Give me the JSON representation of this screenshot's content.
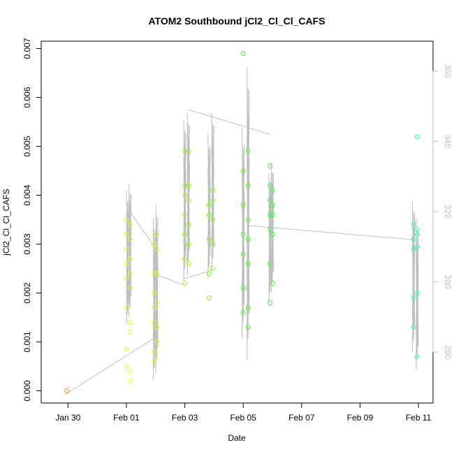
{
  "chart_data": {
    "type": "scatter",
    "title": "ATOM2 Southbound jCl2_Cl_Cl_CAFS",
    "xlabel": "Date",
    "ylabel": "jCl2_Cl_Cl_CAFS",
    "ylabel_right": "",
    "xlim": [
      "2017-01-29T02:00",
      "2017-02-11T12:00"
    ],
    "ylim": [
      -0.00025,
      0.00715
    ],
    "y2lim": [
      265.5,
      368.5
    ],
    "x_ticks": [
      {
        "label": "Jan 30",
        "x": "2017-01-30"
      },
      {
        "label": "Feb 01",
        "x": "2017-02-01"
      },
      {
        "label": "Feb 03",
        "x": "2017-02-03"
      },
      {
        "label": "Feb 05",
        "x": "2017-02-05"
      },
      {
        "label": "Feb 07",
        "x": "2017-02-07"
      },
      {
        "label": "Feb 09",
        "x": "2017-02-09"
      },
      {
        "label": "Feb 11",
        "x": "2017-02-11"
      }
    ],
    "y_ticks": [
      "0.000",
      "0.001",
      "0.002",
      "0.003",
      "0.004",
      "0.005",
      "0.006",
      "0.007"
    ],
    "y2_ticks": [
      "280",
      "300",
      "320",
      "340",
      "360"
    ],
    "grid": false,
    "legend": "none",
    "series": [
      {
        "role": "jCl2_Cl_Cl_CAFS",
        "marker": "open-circle",
        "color_scale": "colored by date, orange (earliest) to cyan (latest)",
        "points": [
          {
            "x": "2017-01-29T23:00",
            "y": 0.0,
            "color": "#ff8c1a"
          },
          {
            "x": "2017-02-01T00:00",
            "y": 0.0035,
            "color": "#e6ff1a"
          },
          {
            "x": "2017-02-01T00:00",
            "y": 0.0032,
            "color": "#e6ff1a"
          },
          {
            "x": "2017-02-01T00:00",
            "y": 0.0029,
            "color": "#e6ff1a"
          },
          {
            "x": "2017-02-01T00:00",
            "y": 0.0026,
            "color": "#e6ff1a"
          },
          {
            "x": "2017-02-01T00:00",
            "y": 0.0023,
            "color": "#e6ff1a"
          },
          {
            "x": "2017-02-01T00:00",
            "y": 0.0017,
            "color": "#e6ff1a"
          },
          {
            "x": "2017-02-01T00:00",
            "y": 0.00085,
            "color": "#e6ff1a"
          },
          {
            "x": "2017-02-01T00:00",
            "y": 0.0005,
            "color": "#e6ff1a"
          },
          {
            "x": "2017-02-01T03:00",
            "y": 0.0034,
            "color": "#e6ff1a"
          },
          {
            "x": "2017-02-01T03:00",
            "y": 0.0031,
            "color": "#e6ff1a"
          },
          {
            "x": "2017-02-01T03:00",
            "y": 0.0027,
            "color": "#e6ff1a"
          },
          {
            "x": "2017-02-01T03:00",
            "y": 0.0024,
            "color": "#e6ff1a"
          },
          {
            "x": "2017-02-01T03:00",
            "y": 0.0021,
            "color": "#e6ff1a"
          },
          {
            "x": "2017-02-01T03:00",
            "y": 0.0014,
            "color": "#e6ff1a"
          },
          {
            "x": "2017-02-01T03:00",
            "y": 0.0012,
            "color": "#e6ff1a"
          },
          {
            "x": "2017-02-01T03:00",
            "y": 0.0004,
            "color": "#e6ff1a"
          },
          {
            "x": "2017-02-01T03:00",
            "y": 0.0002,
            "color": "#e6ff1a"
          },
          {
            "x": "2017-02-01T23:00",
            "y": 0.003,
            "color": "#d9ff1a"
          },
          {
            "x": "2017-02-01T23:00",
            "y": 0.0024,
            "color": "#d9ff1a"
          },
          {
            "x": "2017-02-01T23:00",
            "y": 0.002,
            "color": "#d9ff1a"
          },
          {
            "x": "2017-02-01T23:00",
            "y": 0.0017,
            "color": "#d9ff1a"
          },
          {
            "x": "2017-02-01T23:00",
            "y": 0.0014,
            "color": "#d9ff1a"
          },
          {
            "x": "2017-02-01T23:00",
            "y": 0.0008,
            "color": "#d9ff1a"
          },
          {
            "x": "2017-02-01T23:00",
            "y": 0.0006,
            "color": "#d9ff1a"
          },
          {
            "x": "2017-02-02T01:00",
            "y": 0.0032,
            "color": "#d9ff1a"
          },
          {
            "x": "2017-02-02T01:00",
            "y": 0.0029,
            "color": "#d9ff1a"
          },
          {
            "x": "2017-02-02T01:00",
            "y": 0.0024,
            "color": "#d9ff1a"
          },
          {
            "x": "2017-02-02T01:00",
            "y": 0.0018,
            "color": "#d9ff1a"
          },
          {
            "x": "2017-02-02T01:00",
            "y": 0.0013,
            "color": "#d9ff1a"
          },
          {
            "x": "2017-02-02T01:00",
            "y": 0.001,
            "color": "#d9ff1a"
          },
          {
            "x": "2017-02-03T00:00",
            "y": 0.0049,
            "color": "#9cff1a"
          },
          {
            "x": "2017-02-03T00:00",
            "y": 0.0042,
            "color": "#9cff1a"
          },
          {
            "x": "2017-02-03T00:00",
            "y": 0.004,
            "color": "#9cff1a"
          },
          {
            "x": "2017-02-03T00:00",
            "y": 0.0036,
            "color": "#9cff1a"
          },
          {
            "x": "2017-02-03T00:00",
            "y": 0.0032,
            "color": "#9cff1a"
          },
          {
            "x": "2017-02-03T00:00",
            "y": 0.0027,
            "color": "#9cff1a"
          },
          {
            "x": "2017-02-03T00:00",
            "y": 0.0022,
            "color": "#9cff1a"
          },
          {
            "x": "2017-02-03T03:00",
            "y": 0.0049,
            "color": "#9cff1a"
          },
          {
            "x": "2017-02-03T03:00",
            "y": 0.0042,
            "color": "#9cff1a"
          },
          {
            "x": "2017-02-03T03:00",
            "y": 0.0039,
            "color": "#9cff1a"
          },
          {
            "x": "2017-02-03T03:00",
            "y": 0.0034,
            "color": "#9cff1a"
          },
          {
            "x": "2017-02-03T03:00",
            "y": 0.003,
            "color": "#9cff1a"
          },
          {
            "x": "2017-02-03T03:00",
            "y": 0.0026,
            "color": "#9cff1a"
          },
          {
            "x": "2017-02-03T20:00",
            "y": 0.0038,
            "color": "#7fff1a"
          },
          {
            "x": "2017-02-03T20:00",
            "y": 0.0036,
            "color": "#7fff1a"
          },
          {
            "x": "2017-02-03T20:00",
            "y": 0.0031,
            "color": "#7fff1a"
          },
          {
            "x": "2017-02-03T20:00",
            "y": 0.0024,
            "color": "#7fff1a"
          },
          {
            "x": "2017-02-03T20:00",
            "y": 0.0019,
            "color": "#7fff1a"
          },
          {
            "x": "2017-02-03T23:00",
            "y": 0.0041,
            "color": "#7fff1a"
          },
          {
            "x": "2017-02-03T23:00",
            "y": 0.0039,
            "color": "#7fff1a"
          },
          {
            "x": "2017-02-03T23:00",
            "y": 0.0035,
            "color": "#7fff1a"
          },
          {
            "x": "2017-02-03T23:00",
            "y": 0.003,
            "color": "#7fff1a"
          },
          {
            "x": "2017-02-03T23:00",
            "y": 0.0025,
            "color": "#7fff1a"
          },
          {
            "x": "2017-02-05T00:00",
            "y": 0.0069,
            "color": "#4dff1a"
          },
          {
            "x": "2017-02-05T00:00",
            "y": 0.0045,
            "color": "#4dff1a"
          },
          {
            "x": "2017-02-05T00:00",
            "y": 0.0038,
            "color": "#4dff1a"
          },
          {
            "x": "2017-02-05T00:00",
            "y": 0.0032,
            "color": "#4dff1a"
          },
          {
            "x": "2017-02-05T00:00",
            "y": 0.0028,
            "color": "#4dff1a"
          },
          {
            "x": "2017-02-05T00:00",
            "y": 0.0021,
            "color": "#4dff1a"
          },
          {
            "x": "2017-02-05T00:00",
            "y": 0.0016,
            "color": "#4dff1a"
          },
          {
            "x": "2017-02-05T04:00",
            "y": 0.0049,
            "color": "#4dff1a"
          },
          {
            "x": "2017-02-05T04:00",
            "y": 0.0042,
            "color": "#4dff1a"
          },
          {
            "x": "2017-02-05T04:00",
            "y": 0.0035,
            "color": "#4dff1a"
          },
          {
            "x": "2017-02-05T04:00",
            "y": 0.0031,
            "color": "#4dff1a"
          },
          {
            "x": "2017-02-05T04:00",
            "y": 0.0026,
            "color": "#4dff1a"
          },
          {
            "x": "2017-02-05T04:00",
            "y": 0.0017,
            "color": "#4dff1a"
          },
          {
            "x": "2017-02-05T04:00",
            "y": 0.0013,
            "color": "#4dff1a"
          },
          {
            "x": "2017-02-05T22:00",
            "y": 0.0046,
            "color": "#33ff33"
          },
          {
            "x": "2017-02-05T22:00",
            "y": 0.0042,
            "color": "#33ff33"
          },
          {
            "x": "2017-02-05T22:00",
            "y": 0.0039,
            "color": "#33ff33"
          },
          {
            "x": "2017-02-05T22:00",
            "y": 0.0036,
            "color": "#33ff33"
          },
          {
            "x": "2017-02-05T22:00",
            "y": 0.0033,
            "color": "#33ff33"
          },
          {
            "x": "2017-02-05T22:00",
            "y": 0.0026,
            "color": "#33ff33"
          },
          {
            "x": "2017-02-05T22:00",
            "y": 0.0018,
            "color": "#33ff33"
          },
          {
            "x": "2017-02-06T00:00",
            "y": 0.0041,
            "color": "#33ff33"
          },
          {
            "x": "2017-02-06T00:00",
            "y": 0.0038,
            "color": "#33ff33"
          },
          {
            "x": "2017-02-06T00:00",
            "y": 0.0036,
            "color": "#33ff33"
          },
          {
            "x": "2017-02-06T00:00",
            "y": 0.0032,
            "color": "#33ff33"
          },
          {
            "x": "2017-02-06T00:00",
            "y": 0.0022,
            "color": "#33ff33"
          },
          {
            "x": "2017-02-10T20:00",
            "y": 0.0034,
            "color": "#33ffc4"
          },
          {
            "x": "2017-02-10T20:00",
            "y": 0.0031,
            "color": "#33ffc4"
          },
          {
            "x": "2017-02-10T20:00",
            "y": 0.0029,
            "color": "#33ffc4"
          },
          {
            "x": "2017-02-10T20:00",
            "y": 0.0019,
            "color": "#33ffc4"
          },
          {
            "x": "2017-02-10T20:00",
            "y": 0.0013,
            "color": "#33ffc4"
          },
          {
            "x": "2017-02-10T23:00",
            "y": 0.0052,
            "color": "#33ffcc"
          },
          {
            "x": "2017-02-10T23:00",
            "y": 0.0033,
            "color": "#33ffcc"
          },
          {
            "x": "2017-02-10T23:00",
            "y": 0.0032,
            "color": "#33ffcc"
          },
          {
            "x": "2017-02-10T23:00",
            "y": 0.00295,
            "color": "#33ffcc"
          },
          {
            "x": "2017-02-10T23:00",
            "y": 0.002,
            "color": "#33ffcc"
          },
          {
            "x": "2017-02-10T23:00",
            "y": 0.0007,
            "color": "#33ffcc"
          }
        ]
      },
      {
        "role": "right-axis track (grey line)",
        "color": "#bebebe",
        "spikes": [
          {
            "x": "2017-02-01T01:00",
            "y2": [
              288,
              326
            ],
            "top": 323,
            "bottom": 291
          },
          {
            "x": "2017-02-01T03:00",
            "y2": [
              290,
              328
            ],
            "top": 325,
            "bottom": 294
          },
          {
            "x": "2017-02-01T23:00",
            "y2": [
              272,
              318
            ],
            "top": 315,
            "bottom": 276
          },
          {
            "x": "2017-02-02T01:00",
            "y2": [
              274,
              322
            ],
            "top": 319,
            "bottom": 280
          },
          {
            "x": "2017-02-03T00:00",
            "y2": [
              300,
              346
            ],
            "top": 343,
            "bottom": 304
          },
          {
            "x": "2017-02-03T03:00",
            "y2": [
              302,
              348
            ],
            "top": 345,
            "bottom": 307
          },
          {
            "x": "2017-02-03T20:00",
            "y2": [
              301,
              342
            ],
            "top": 338,
            "bottom": 305
          },
          {
            "x": "2017-02-03T23:00",
            "y2": [
              303,
              348
            ],
            "top": 345,
            "bottom": 308
          },
          {
            "x": "2017-02-05T00:00",
            "y2": [
              284,
              344
            ],
            "top": 338,
            "bottom": 290
          },
          {
            "x": "2017-02-05T04:00",
            "y2": [
              278,
              361
            ],
            "top": 355,
            "bottom": 284
          },
          {
            "x": "2017-02-05T22:00",
            "y2": [
              294,
              331
            ],
            "top": 328,
            "bottom": 298
          },
          {
            "x": "2017-02-06T00:00",
            "y2": [
              297,
              334
            ],
            "top": 331,
            "bottom": 301
          },
          {
            "x": "2017-02-10T20:00",
            "y2": [
              280,
              323
            ],
            "top": 320,
            "bottom": 284
          },
          {
            "x": "2017-02-10T23:00",
            "y2": [
              275,
              318
            ],
            "top": 315,
            "bottom": 279
          }
        ],
        "connectors": [
          {
            "x1": "2017-01-29T22:00",
            "y1": 268,
            "x2": "2017-02-01T23:00",
            "y2": 284
          },
          {
            "x1": "2017-02-01T03:00",
            "y1": 320,
            "x2": "2017-02-01T23:00",
            "y2": 310
          },
          {
            "x1": "2017-02-02T01:00",
            "y1": 302,
            "x2": "2017-02-03T00:00",
            "y2": 299
          },
          {
            "x1": "2017-02-03T03:00",
            "y1": 349,
            "x2": "2017-02-05T22:00",
            "y2": 342
          },
          {
            "x1": "2017-02-03T00:00",
            "y1": 301,
            "x2": "2017-02-03T20:00",
            "y2": 303
          },
          {
            "x1": "2017-02-05T04:00",
            "y1": 316,
            "x2": "2017-02-10T20:00",
            "y2": 312
          }
        ]
      }
    ]
  }
}
